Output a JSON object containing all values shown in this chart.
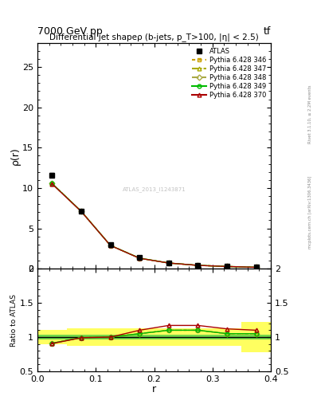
{
  "title_top": "7000 GeV pp",
  "title_right": "tf",
  "rivet_label": "Rivet 3.1.10, ≥ 2.2M events",
  "mcplots_label": "mcplots.cern.ch [arXiv:1306.3436]",
  "watermark": "ATLAS_2013_I1243871",
  "main_title": "Differential jet shapeρ (b-jets, p_T>100, |η| < 2.5)",
  "xlabel": "r",
  "ylabel_main": "ρ(r)",
  "ylabel_ratio": "Ratio to ATLAS",
  "r_values": [
    0.025,
    0.075,
    0.125,
    0.175,
    0.225,
    0.275,
    0.325,
    0.375
  ],
  "atlas_data": [
    11.6,
    7.15,
    2.95,
    1.35,
    0.72,
    0.42,
    0.28,
    0.18
  ],
  "atlas_errors_stat": [
    0.25,
    0.12,
    0.06,
    0.04,
    0.025,
    0.018,
    0.015,
    0.012
  ],
  "mc_lines": [
    {
      "label": "Pythia 6.428 346",
      "color": "#c8a000",
      "linestyle": "dotted",
      "marker": "s",
      "values": [
        10.55,
        7.1,
        2.88,
        1.3,
        0.7,
        0.41,
        0.27,
        0.17
      ]
    },
    {
      "label": "Pythia 6.428 347",
      "color": "#aaaa00",
      "linestyle": "dashdot",
      "marker": "^",
      "values": [
        10.55,
        7.1,
        2.88,
        1.3,
        0.7,
        0.41,
        0.27,
        0.17
      ]
    },
    {
      "label": "Pythia 6.428 348",
      "color": "#aaaa44",
      "linestyle": "dashed",
      "marker": "D",
      "values": [
        10.55,
        7.1,
        2.88,
        1.3,
        0.7,
        0.41,
        0.27,
        0.17
      ]
    },
    {
      "label": "Pythia 6.428 349",
      "color": "#00bb00",
      "linestyle": "solid",
      "marker": "o",
      "values": [
        10.55,
        7.1,
        2.88,
        1.3,
        0.7,
        0.41,
        0.27,
        0.17
      ]
    },
    {
      "label": "Pythia 6.428 370",
      "color": "#aa0000",
      "linestyle": "solid",
      "marker": "^",
      "values": [
        10.5,
        7.08,
        2.87,
        1.28,
        0.695,
        0.408,
        0.268,
        0.168
      ]
    }
  ],
  "ratio_r_values": [
    0.025,
    0.075,
    0.125,
    0.175,
    0.225,
    0.275,
    0.325,
    0.375
  ],
  "ratio_mc_lines": [
    {
      "color": "#c8a000",
      "linestyle": "dotted",
      "marker": "s",
      "values": [
        0.91,
        0.993,
        1.0,
        1.05,
        1.1,
        1.1,
        1.05,
        1.05
      ]
    },
    {
      "color": "#aaaa00",
      "linestyle": "dashdot",
      "marker": "^",
      "values": [
        0.91,
        0.993,
        1.0,
        1.05,
        1.1,
        1.1,
        1.05,
        1.05
      ]
    },
    {
      "color": "#aaaa44",
      "linestyle": "dashed",
      "marker": "D",
      "values": [
        0.91,
        0.993,
        1.0,
        1.05,
        1.1,
        1.1,
        1.05,
        1.05
      ]
    },
    {
      "color": "#00bb00",
      "linestyle": "solid",
      "marker": "o",
      "values": [
        0.91,
        0.993,
        1.0,
        1.05,
        1.1,
        1.1,
        1.05,
        1.05
      ]
    },
    {
      "color": "#aa0000",
      "linestyle": "solid",
      "marker": "^",
      "values": [
        0.905,
        0.99,
        1.0,
        1.1,
        1.17,
        1.17,
        1.12,
        1.1
      ]
    }
  ],
  "ratio_band_green_lo": [
    0.97,
    0.97,
    0.97,
    0.97,
    0.97,
    0.97,
    0.97,
    0.97
  ],
  "ratio_band_green_hi": [
    1.03,
    1.03,
    1.03,
    1.03,
    1.03,
    1.03,
    1.03,
    1.03
  ],
  "ratio_band_yellow_lo": [
    0.89,
    0.87,
    0.87,
    0.87,
    0.87,
    0.87,
    0.87,
    0.78
  ],
  "ratio_band_yellow_hi": [
    1.11,
    1.13,
    1.13,
    1.13,
    1.13,
    1.13,
    1.13,
    1.22
  ],
  "ylim_main": [
    0,
    28
  ],
  "ylim_ratio": [
    0.5,
    2.0
  ],
  "xlim": [
    0.0,
    0.4
  ],
  "bg_color": "#ffffff"
}
